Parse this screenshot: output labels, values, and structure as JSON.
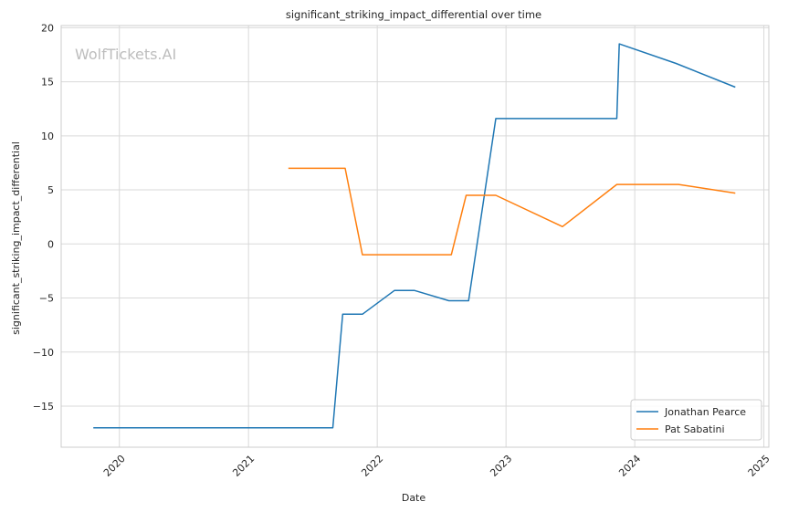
{
  "chart_data": {
    "type": "line",
    "title": "significant_striking_impact_differential over time",
    "xlabel": "Date",
    "ylabel": "significant_striking_impact_differential",
    "watermark": "WolfTickets.AI",
    "xlim": [
      "2019-07-20",
      "2025-01-15"
    ],
    "ylim": [
      -18.8,
      20.2
    ],
    "x_ticks": [
      "2020-01-01",
      "2021-01-01",
      "2022-01-01",
      "2023-01-01",
      "2024-01-01",
      "2025-01-01"
    ],
    "x_tick_labels": [
      "2020",
      "2021",
      "2022",
      "2023",
      "2024",
      "2025"
    ],
    "y_ticks": [
      -15,
      -10,
      -5,
      0,
      5,
      10,
      15,
      20
    ],
    "y_tick_labels": [
      "−15",
      "−10",
      "−5",
      "0",
      "5",
      "10",
      "15",
      "20"
    ],
    "grid": true,
    "legend_position": "lower-right",
    "series": [
      {
        "name": "Jonathan Pearce",
        "color": "#1f77b4",
        "points": [
          [
            "2019-10-19",
            -17.0
          ],
          [
            "2021-08-28",
            -17.0
          ],
          [
            "2021-09-25",
            -6.5
          ],
          [
            "2021-11-20",
            -6.5
          ],
          [
            "2022-02-19",
            -4.3
          ],
          [
            "2022-04-16",
            -4.3
          ],
          [
            "2022-07-23",
            -5.25
          ],
          [
            "2022-09-17",
            -5.25
          ],
          [
            "2022-12-03",
            11.6
          ],
          [
            "2023-11-11",
            11.6
          ],
          [
            "2023-11-18",
            18.5
          ],
          [
            "2024-04-27",
            16.7
          ],
          [
            "2024-10-12",
            14.5
          ]
        ]
      },
      {
        "name": "Pat Sabatini",
        "color": "#ff7f0e",
        "points": [
          [
            "2021-04-24",
            7.0
          ],
          [
            "2021-10-02",
            7.0
          ],
          [
            "2021-11-20",
            -1.0
          ],
          [
            "2022-07-30",
            -1.0
          ],
          [
            "2022-09-10",
            4.5
          ],
          [
            "2022-12-03",
            4.5
          ],
          [
            "2023-06-10",
            1.6
          ],
          [
            "2023-11-11",
            5.5
          ],
          [
            "2024-05-04",
            5.5
          ],
          [
            "2024-10-12",
            4.7
          ]
        ]
      }
    ]
  }
}
